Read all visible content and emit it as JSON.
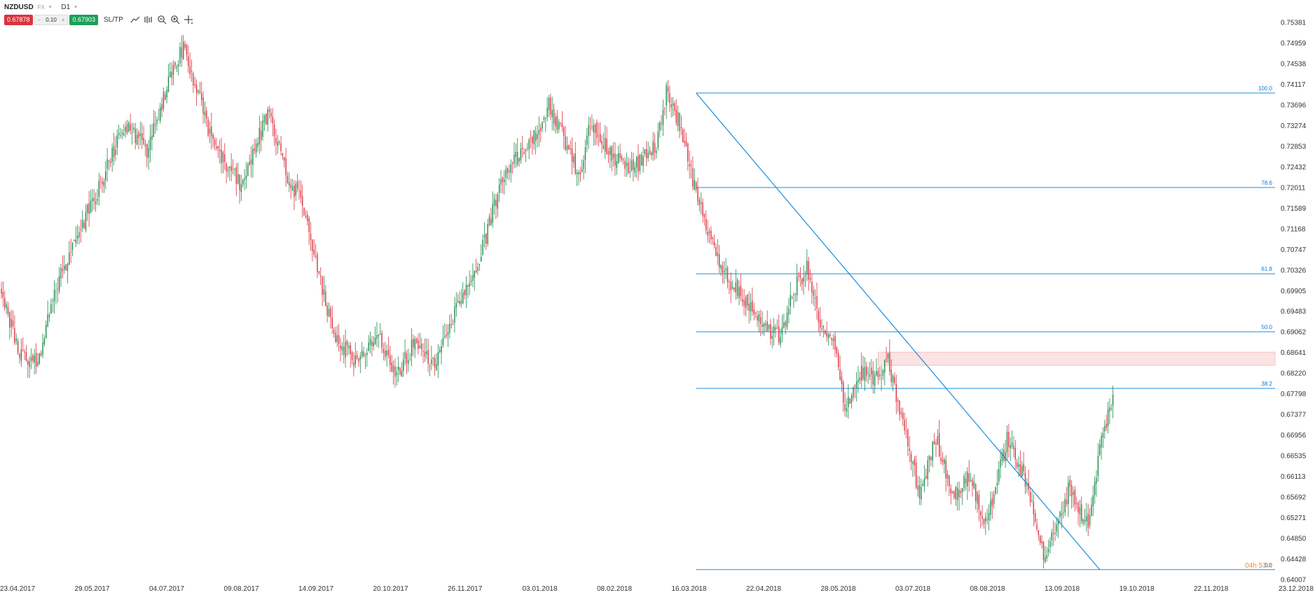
{
  "toolbar": {
    "symbol": "NZDUSD",
    "market": "FX",
    "timeframe": "D1",
    "sell_price": "0.67878",
    "lot_size": "0.10",
    "lot_minus": "−",
    "lot_plus": "+",
    "buy_price": "0.67903",
    "sltp_label": "SL/TP",
    "icons": [
      "line-tool-icon",
      "bar-chart-icon",
      "zoom-out-icon",
      "zoom-in-icon",
      "crosshair-icon"
    ]
  },
  "colors": {
    "bull": "#1e8a4c",
    "bear": "#d9333f",
    "fib_line": "#1a8fe0",
    "fib_label": "#1a75d1",
    "zone_fill": "#fbe3e3",
    "zone_stroke": "#f2b8b8",
    "countdown": "#f08c2a",
    "axis_text": "#333333"
  },
  "chart_data": {
    "type": "candlestick",
    "symbol": "NZDUSD",
    "timeframe": "D1",
    "y_range": [
      0.64007,
      0.75381
    ],
    "y_ticks": [
      "0.75381",
      "0.74959",
      "0.74538",
      "0.74117",
      "0.73696",
      "0.73274",
      "0.72853",
      "0.72432",
      "0.72011",
      "0.71589",
      "0.71168",
      "0.70747",
      "0.70326",
      "0.69905",
      "0.69483",
      "0.69062",
      "0.68641",
      "0.68220",
      "0.67798",
      "0.67377",
      "0.66956",
      "0.66535",
      "0.66113",
      "0.65692",
      "0.65271",
      "0.64850",
      "0.64428",
      "0.64007"
    ],
    "x_ticks": [
      "23.04.2017",
      "29.05.2017",
      "04.07.2017",
      "09.08.2017",
      "14.09.2017",
      "20.10.2017",
      "26.11.2017",
      "03.01.2018",
      "08.02.2018",
      "16.03.2018",
      "22.04.2018",
      "28.05.2018",
      "03.07.2018",
      "08.08.2018",
      "13.09.2018",
      "19.10.2018",
      "22.11.2018",
      "23.12.2018"
    ],
    "anchors": [
      [
        0.6985,
        0
      ],
      [
        0.6855,
        12
      ],
      [
        0.685,
        22
      ],
      [
        0.7025,
        36
      ],
      [
        0.7195,
        58
      ],
      [
        0.7335,
        75
      ],
      [
        0.7275,
        88
      ],
      [
        0.7445,
        104
      ],
      [
        0.7485,
        110
      ],
      [
        0.729,
        128
      ],
      [
        0.721,
        144
      ],
      [
        0.7355,
        162
      ],
      [
        0.7215,
        174
      ],
      [
        0.7175,
        181
      ],
      [
        0.706,
        190
      ],
      [
        0.6905,
        200
      ],
      [
        0.684,
        216
      ],
      [
        0.6905,
        227
      ],
      [
        0.6815,
        238
      ],
      [
        0.6885,
        250
      ],
      [
        0.6835,
        262
      ],
      [
        0.6965,
        276
      ],
      [
        0.7065,
        290
      ],
      [
        0.7235,
        304
      ],
      [
        0.729,
        320
      ],
      [
        0.737,
        331
      ],
      [
        0.73,
        340
      ],
      [
        0.722,
        350
      ],
      [
        0.7335,
        356
      ],
      [
        0.727,
        368
      ],
      [
        0.724,
        382
      ],
      [
        0.7285,
        396
      ],
      [
        0.7398,
        402
      ],
      [
        0.733,
        410
      ],
      [
        0.722,
        418
      ],
      [
        0.714,
        425
      ],
      [
        0.703,
        436
      ],
      [
        0.6975,
        448
      ],
      [
        0.6925,
        458
      ],
      [
        0.6895,
        470
      ],
      [
        0.7005,
        481
      ],
      [
        0.7035,
        487
      ],
      [
        0.6905,
        496
      ],
      [
        0.6885,
        503
      ],
      [
        0.6755,
        510
      ],
      [
        0.6825,
        520
      ],
      [
        0.681,
        530
      ],
      [
        0.6845,
        536
      ],
      [
        0.6705,
        546
      ],
      [
        0.6575,
        555
      ],
      [
        0.669,
        565
      ],
      [
        0.657,
        576
      ],
      [
        0.6615,
        586
      ],
      [
        0.651,
        594
      ],
      [
        0.66,
        602
      ],
      [
        0.669,
        608
      ],
      [
        0.6625,
        616
      ],
      [
        0.655,
        624
      ],
      [
        0.6445,
        630
      ],
      [
        0.6505,
        638
      ],
      [
        0.6595,
        646
      ],
      [
        0.6535,
        652
      ],
      [
        0.652,
        658
      ],
      [
        0.667,
        664
      ],
      [
        0.6778,
        672
      ]
    ],
    "fibonacci": {
      "levels": [
        {
          "label": "100.0",
          "price": 0.7394
        },
        {
          "label": "78.6",
          "price": 0.7201
        },
        {
          "label": "61.8",
          "price": 0.7025
        },
        {
          "label": "50.0",
          "price": 0.69065
        },
        {
          "label": "38.2",
          "price": 0.6791
        },
        {
          "label": "0.0",
          "price": 0.6421
        }
      ],
      "start_bar": 420,
      "end_bar": 744
    },
    "trendline": {
      "start": [
        420,
        0.7394
      ],
      "end": [
        664,
        0.6421
      ]
    },
    "resistance_zone": {
      "start_bar": 530,
      "top": 0.6865,
      "bottom": 0.6838
    },
    "countdown_label": "04h 53m",
    "bars_visible": 770
  }
}
